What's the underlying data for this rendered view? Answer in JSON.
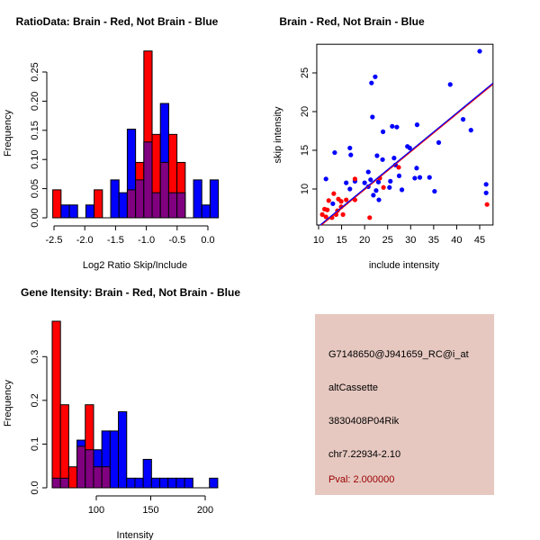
{
  "colors": {
    "red": "#ff0000",
    "blue": "#0000ff",
    "overlap": "#800080",
    "info_bg": "#e6c8c0",
    "pval": "#990000"
  },
  "chart_data": [
    {
      "type": "bar",
      "title": "RatioData: Brain - Red, Not Brain - Blue",
      "xlabel": "Log2 Ratio Skip/Include",
      "ylabel": "Frequency",
      "bin_start": -2.52,
      "bin_width": 0.1345,
      "xticks": [
        -2.5,
        -2.0,
        -1.5,
        -1.0,
        -0.5,
        0.0
      ],
      "xtick_labels": [
        "-2.5",
        "-2.0",
        "-1.5",
        "-1.0",
        "-0.5",
        "0.0"
      ],
      "yticks": [
        0,
        0.05,
        0.1,
        0.15,
        0.2,
        0.25
      ],
      "ytick_labels": [
        "0.00",
        "0.05",
        "0.10",
        "0.15",
        "0.20",
        "0.25"
      ],
      "series": [
        {
          "name": "Brain",
          "color": "red",
          "values": [
            0.048,
            0,
            0,
            0,
            0,
            0.048,
            0,
            0,
            0,
            0.048,
            0.095,
            0.286,
            0.143,
            0.095,
            0.143,
            0.095,
            0,
            0,
            0,
            0
          ]
        },
        {
          "name": "Not Brain",
          "color": "blue",
          "values": [
            0,
            0.022,
            0.022,
            0,
            0.022,
            0,
            0,
            0.065,
            0.043,
            0.152,
            0.065,
            0.13,
            0.043,
            0.196,
            0.043,
            0.043,
            0,
            0.065,
            0.022,
            0.065
          ]
        }
      ]
    },
    {
      "type": "scatter",
      "title": "Brain - Red, Not Brain - Blue",
      "xlabel": "include intensity",
      "ylabel": "skip intensity",
      "xlim": [
        9.6,
        47.9
      ],
      "ylim": [
        5.35,
        28.7
      ],
      "xticks": [
        10,
        15,
        20,
        25,
        30,
        35,
        40,
        45
      ],
      "xtick_labels": [
        "10",
        "15",
        "20",
        "25",
        "30",
        "35",
        "40",
        "45"
      ],
      "yticks": [
        10,
        15,
        20,
        25
      ],
      "ytick_labels": [
        "10",
        "15",
        "20",
        "25"
      ],
      "fit_line": {
        "slope": 0.488,
        "intercept": 0.23
      },
      "series": [
        {
          "name": "Not Brain",
          "color": "blue",
          "points": [
            [
              45.0,
              27.8
            ],
            [
              22.3,
              24.5
            ],
            [
              21.5,
              23.7
            ],
            [
              38.6,
              23.5
            ],
            [
              21.7,
              19.3
            ],
            [
              41.4,
              19.0
            ],
            [
              24.0,
              17.4
            ],
            [
              26.0,
              18.1
            ],
            [
              27.0,
              18.0
            ],
            [
              31.4,
              18.3
            ],
            [
              43.1,
              17.6
            ],
            [
              36.1,
              16.0
            ],
            [
              29.3,
              15.5
            ],
            [
              29.8,
              15.3
            ],
            [
              16.8,
              15.3
            ],
            [
              13.5,
              14.7
            ],
            [
              17.0,
              14.4
            ],
            [
              22.7,
              14.3
            ],
            [
              23.9,
              13.8
            ],
            [
              26.4,
              14.0
            ],
            [
              26.7,
              13.1
            ],
            [
              31.3,
              12.7
            ],
            [
              20.8,
              12.2
            ],
            [
              27.5,
              11.7
            ],
            [
              11.6,
              11.3
            ],
            [
              21.3,
              11.2
            ],
            [
              30.9,
              11.4
            ],
            [
              32.0,
              11.5
            ],
            [
              34.1,
              11.5
            ],
            [
              16.0,
              10.8
            ],
            [
              17.9,
              11.0
            ],
            [
              20.0,
              10.8
            ],
            [
              20.8,
              10.3
            ],
            [
              23.0,
              10.9
            ],
            [
              25.6,
              11.0
            ],
            [
              16.8,
              10.0
            ],
            [
              22.5,
              9.8
            ],
            [
              25.4,
              10.2
            ],
            [
              28.1,
              9.9
            ],
            [
              21.9,
              9.2
            ],
            [
              23.1,
              8.6
            ],
            [
              13.1,
              8.1
            ],
            [
              35.2,
              9.7
            ],
            [
              46.4,
              10.6
            ],
            [
              46.4,
              9.5
            ]
          ]
        },
        {
          "name": "Brain",
          "color": "red",
          "points": [
            [
              10.8,
              6.7
            ],
            [
              11.3,
              7.4
            ],
            [
              11.6,
              6.4
            ],
            [
              11.9,
              7.3
            ],
            [
              12.2,
              8.5
            ],
            [
              12.9,
              6.3
            ],
            [
              13.3,
              9.4
            ],
            [
              13.8,
              6.7
            ],
            [
              14.1,
              7.2
            ],
            [
              14.3,
              8.7
            ],
            [
              14.9,
              8.4
            ],
            [
              14.9,
              7.7
            ],
            [
              15.3,
              6.7
            ],
            [
              16.0,
              8.6
            ],
            [
              17.9,
              8.6
            ],
            [
              17.9,
              11.3
            ],
            [
              21.1,
              6.3
            ],
            [
              23.3,
              11.4
            ],
            [
              24.1,
              10.2
            ],
            [
              27.4,
              12.8
            ],
            [
              46.6,
              8.0
            ]
          ]
        }
      ]
    },
    {
      "type": "bar",
      "title": "Gene Itensity: Brain - Red, Not Brain - Blue",
      "xlabel": "Intensity",
      "ylabel": "Frequency",
      "bin_start": 59.5,
      "bin_width": 7.6,
      "xticks": [
        100,
        150,
        200
      ],
      "xtick_labels": [
        "100",
        "150",
        "200"
      ],
      "yticks": [
        0,
        0.1,
        0.2,
        0.3
      ],
      "ytick_labels": [
        "0.0",
        "0.1",
        "0.2",
        "0.3"
      ],
      "series": [
        {
          "name": "Brain",
          "color": "red",
          "values": [
            0.381,
            0.19,
            0.048,
            0.095,
            0.19,
            0.048,
            0.048,
            0,
            0,
            0,
            0,
            0,
            0,
            0,
            0,
            0,
            0,
            0,
            0,
            0
          ]
        },
        {
          "name": "Not Brain",
          "color": "blue",
          "values": [
            0.022,
            0.022,
            0,
            0.109,
            0.087,
            0.087,
            0.13,
            0.13,
            0.174,
            0.022,
            0.022,
            0.065,
            0.022,
            0.022,
            0.022,
            0.022,
            0.022,
            0,
            0,
            0.022
          ]
        }
      ]
    }
  ],
  "info": {
    "probe": "G7148650@J941659_RC@i_at",
    "event_type": "altCassette",
    "gene": "3830408P04Rik",
    "location": "chr7.22934-2.10",
    "pval": "Pval: 2.000000"
  }
}
